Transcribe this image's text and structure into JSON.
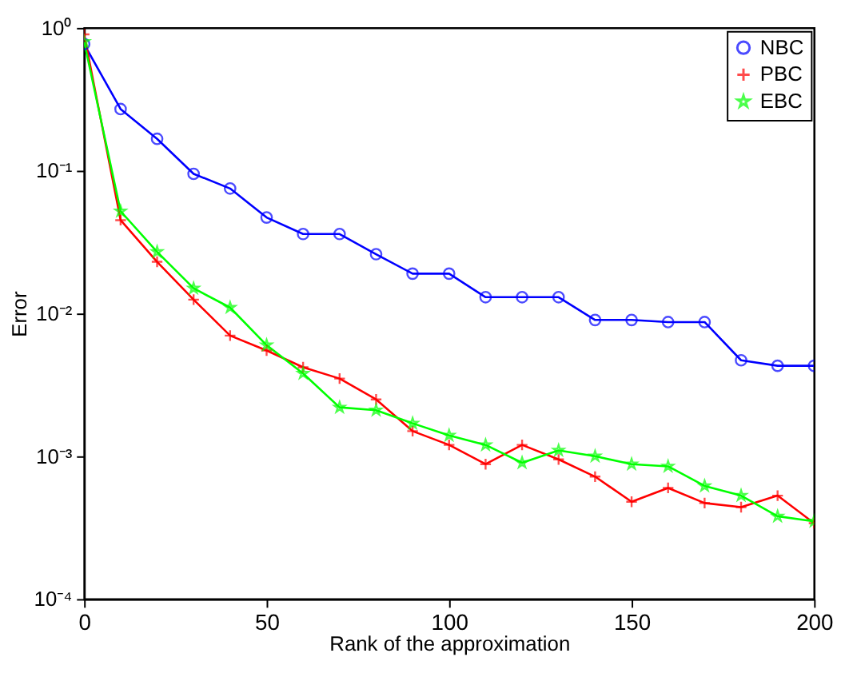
{
  "chart_data": {
    "type": "line",
    "xlabel": "Rank of the approximation",
    "ylabel": "Error",
    "x": [
      0,
      10,
      20,
      30,
      40,
      50,
      60,
      70,
      80,
      90,
      100,
      110,
      120,
      130,
      140,
      150,
      160,
      170,
      180,
      190,
      200
    ],
    "series": [
      {
        "name": "NBC",
        "color": "#0000ff",
        "marker": "circle",
        "values": [
          0.77,
          0.27,
          0.167,
          0.095,
          0.075,
          0.047,
          0.036,
          0.036,
          0.026,
          0.019,
          0.019,
          0.013,
          0.013,
          0.013,
          0.009,
          0.009,
          0.0087,
          0.0087,
          0.0047,
          0.0043,
          0.0043
        ]
      },
      {
        "name": "PBC",
        "color": "#ff0000",
        "marker": "cross",
        "values": [
          0.9,
          0.045,
          0.023,
          0.0125,
          0.007,
          0.0055,
          0.0042,
          0.0035,
          0.0025,
          0.0015,
          0.0012,
          0.00088,
          0.0012,
          0.00095,
          0.00072,
          0.00048,
          0.0006,
          0.00047,
          0.00044,
          0.00053,
          0.00034
        ]
      },
      {
        "name": "EBC",
        "color": "#00ff00",
        "marker": "star",
        "values": [
          0.8,
          0.052,
          0.027,
          0.015,
          0.011,
          0.006,
          0.0038,
          0.0022,
          0.0021,
          0.0017,
          0.0014,
          0.0012,
          0.0009,
          0.0011,
          0.001,
          0.00088,
          0.00085,
          0.00062,
          0.00053,
          0.00038,
          0.00035
        ]
      }
    ],
    "log": "y",
    "xlim": [
      0,
      200
    ],
    "xticks": [
      0,
      50,
      100,
      150,
      200
    ],
    "ylim": [
      0.0001,
      1
    ],
    "yticks": [
      {
        "value": 0.0001,
        "label": "10⁻⁴"
      },
      {
        "value": 0.001,
        "label": "10⁻³"
      },
      {
        "value": 0.01,
        "label": "10⁻²"
      },
      {
        "value": 0.1,
        "label": "10⁻¹"
      },
      {
        "value": 1,
        "label": "10⁰"
      }
    ],
    "grid": false,
    "legend": "top right",
    "line_style": "solid"
  }
}
